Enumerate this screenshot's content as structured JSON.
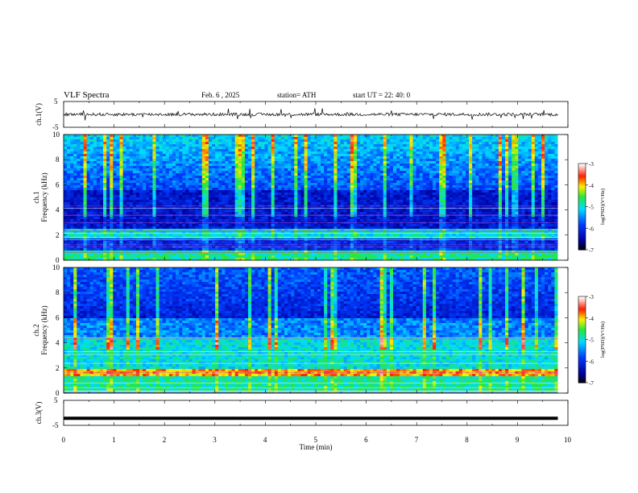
{
  "header": {
    "title": "VLF  Spectra",
    "date": "Feb. 6  , 2025",
    "station": "station= ATH",
    "start": "start  UT  =    22: 40: 0"
  },
  "chart_data": [
    {
      "type": "line",
      "panel": "ch1",
      "ylabel": "ch.1(V)",
      "ylim": [
        -5,
        5
      ],
      "y_ticks": [
        "5",
        "-5"
      ],
      "xlim": [
        0,
        10
      ],
      "series": [
        {
          "name": "ch.1(V)",
          "approx_level": 0,
          "noise_amplitude": 1.2
        }
      ]
    },
    {
      "type": "heatmap",
      "panel": "ch1",
      "ylabel": "ch.1\nFrequency  (kHz)",
      "y_ticks": [
        "0",
        "2",
        "4",
        "6",
        "8",
        "10"
      ],
      "ylim": [
        0,
        10
      ],
      "xlim": [
        0,
        10
      ],
      "colorbar": {
        "label": "log(PSD)(V²/Hz)",
        "ticks": [
          "-3",
          "-4",
          "-5",
          "-6",
          "-7"
        ],
        "range": [
          -7,
          -3
        ]
      }
    },
    {
      "type": "heatmap",
      "panel": "ch2",
      "ylabel": "ch.2\nFrequency  (kHz)",
      "y_ticks": [
        "0",
        "2",
        "4",
        "6",
        "8",
        "10"
      ],
      "ylim": [
        0,
        10
      ],
      "xlim": [
        0,
        10
      ],
      "colorbar": {
        "label": "log(PSD)(V²/Hz)",
        "ticks": [
          "-3",
          "-4",
          "-5",
          "-6",
          "-7"
        ],
        "range": [
          -7,
          -3
        ]
      }
    },
    {
      "type": "line",
      "panel": "ch3",
      "ylabel": "ch.3(V)",
      "ylim": [
        -5,
        5
      ],
      "y_ticks": [
        "5",
        "-5"
      ],
      "xlim": [
        0,
        10
      ],
      "series": [
        {
          "name": "ch.3(V)",
          "approx_level": -2.2
        }
      ]
    }
  ],
  "x_axis": {
    "label": "Time  (min)",
    "ticks": [
      "0",
      "1",
      "2",
      "3",
      "4",
      "5",
      "6",
      "7",
      "8",
      "9",
      "10"
    ],
    "data_end": 9.8
  },
  "colors": {
    "background": "#ffffff",
    "frame": "#000000"
  }
}
